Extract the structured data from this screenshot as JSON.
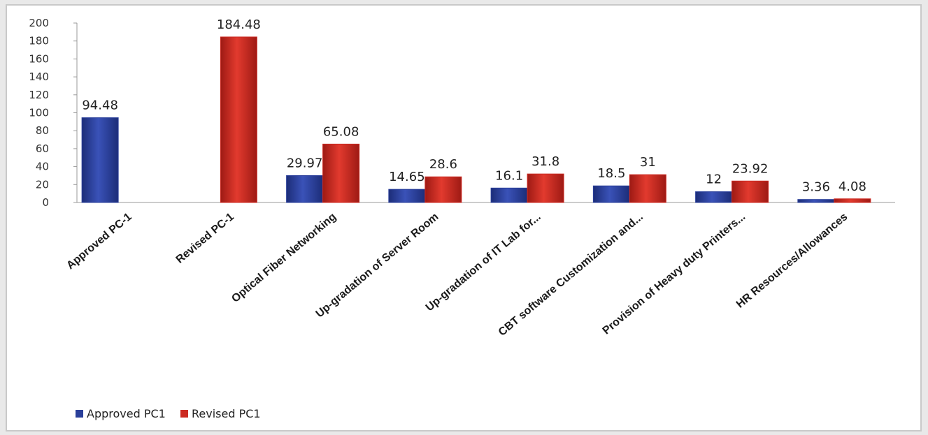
{
  "chart_data": {
    "type": "bar",
    "categories": [
      "Approved PC-1",
      "Revised PC-1",
      "Optical Fiber Networking",
      "Up-gradation of Server Room",
      "Up-gradation of IT Lab for...",
      "CBT software Customization and...",
      "Provision of Heavy duty Printers...",
      "HR Resources/Allowances"
    ],
    "series": [
      {
        "name": "Approved PC1",
        "color": "#2a3f9a",
        "values": [
          94.48,
          null,
          29.97,
          14.65,
          16.1,
          18.5,
          12,
          3.36
        ],
        "labels": [
          "94.48",
          "",
          "29.97",
          "14.65",
          "16.1",
          "18.5",
          "12",
          "3.36"
        ]
      },
      {
        "name": "Revised PC1",
        "color": "#cc2a22",
        "values": [
          null,
          184.48,
          65.08,
          28.6,
          31.8,
          31,
          23.92,
          4.08
        ],
        "labels": [
          "",
          "184.48",
          "65.08",
          "28.6",
          "31.8",
          "31",
          "23.92",
          "4.08"
        ]
      }
    ],
    "ylim": [
      0,
      200
    ],
    "yticks": [
      0,
      20,
      40,
      60,
      80,
      100,
      120,
      140,
      160,
      180,
      200
    ],
    "grid": false,
    "legend": "bottom-left",
    "title": "",
    "xlabel": "",
    "ylabel": ""
  }
}
